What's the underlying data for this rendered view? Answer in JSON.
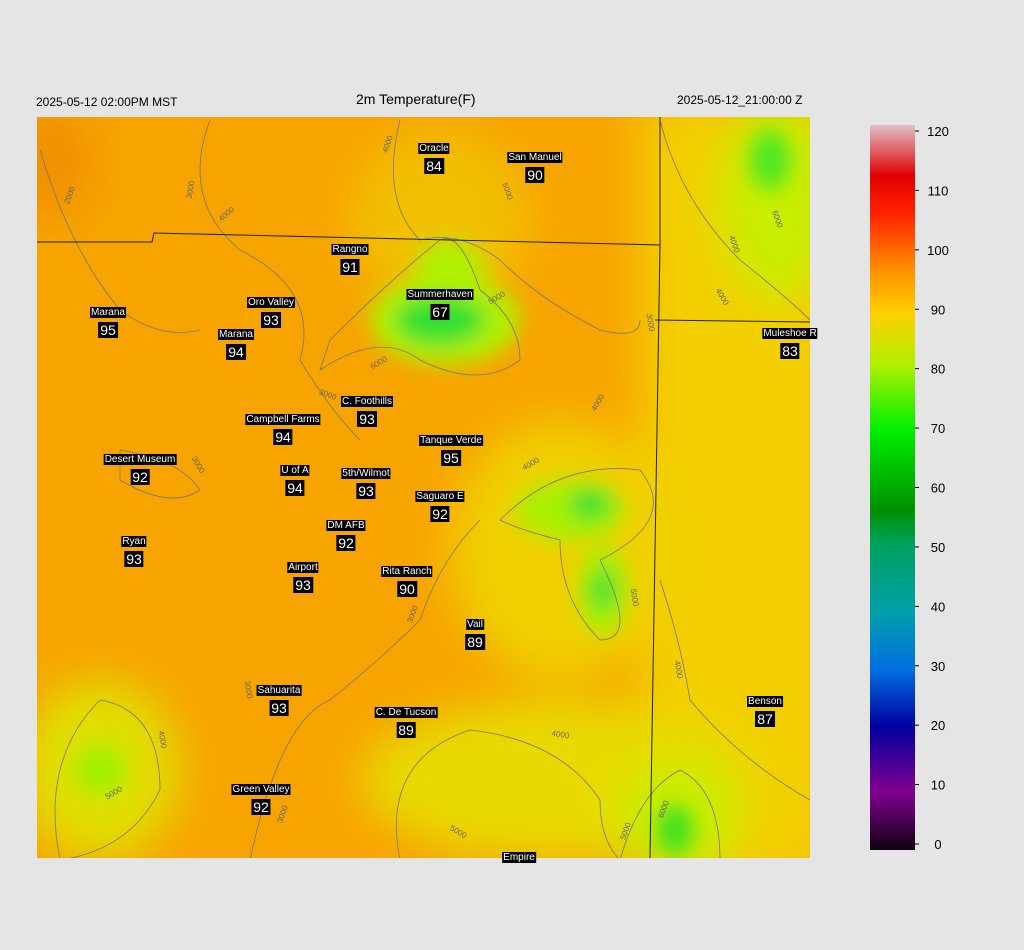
{
  "header": {
    "left": "2025-05-12 02:00PM MST",
    "title": "2m Temperature(F)",
    "right": "2025-05-12_21:00:00 Z"
  },
  "stations": [
    {
      "name": "Oracle",
      "value": 84
    },
    {
      "name": "San Manuel",
      "value": 90
    },
    {
      "name": "Rangno",
      "value": 91
    },
    {
      "name": "Marana",
      "value": 95
    },
    {
      "name": "Oro Valley",
      "value": 93
    },
    {
      "name": "Summerhaven",
      "value": 67
    },
    {
      "name": "Marana",
      "value": 94
    },
    {
      "name": "Muleshoe R",
      "value": 83
    },
    {
      "name": "C. Foothills",
      "value": 93
    },
    {
      "name": "Campbell Farms",
      "value": 94
    },
    {
      "name": "Tanque Verde",
      "value": 95
    },
    {
      "name": "Desert Museum",
      "value": 92
    },
    {
      "name": "U of A",
      "value": 94
    },
    {
      "name": "5th/Wilmot",
      "value": 93
    },
    {
      "name": "Saguaro E",
      "value": 92
    },
    {
      "name": "DM AFB",
      "value": 92
    },
    {
      "name": "Ryan",
      "value": 93
    },
    {
      "name": "Airport",
      "value": 93
    },
    {
      "name": "Rita Ranch",
      "value": 90
    },
    {
      "name": "Vail",
      "value": 89
    },
    {
      "name": "Benson",
      "value": 87
    },
    {
      "name": "Sahuarita",
      "value": 93
    },
    {
      "name": "C. De Tucson",
      "value": 89
    },
    {
      "name": "Green Valley",
      "value": 92
    },
    {
      "name": "Empire",
      "value": null
    }
  ],
  "contour_labels": [
    2000,
    3000,
    4000,
    4000,
    5000,
    5000,
    6000,
    3000,
    3000,
    4000,
    4000,
    5000,
    3000,
    3000,
    4000,
    5000,
    4000,
    4000,
    3000,
    5000,
    6000,
    5000,
    4000,
    6000,
    4000,
    3000
  ],
  "colorbar": {
    "ticks": [
      0,
      10,
      20,
      30,
      40,
      50,
      60,
      70,
      80,
      90,
      100,
      110,
      120
    ],
    "lim": [
      0,
      120
    ]
  }
}
